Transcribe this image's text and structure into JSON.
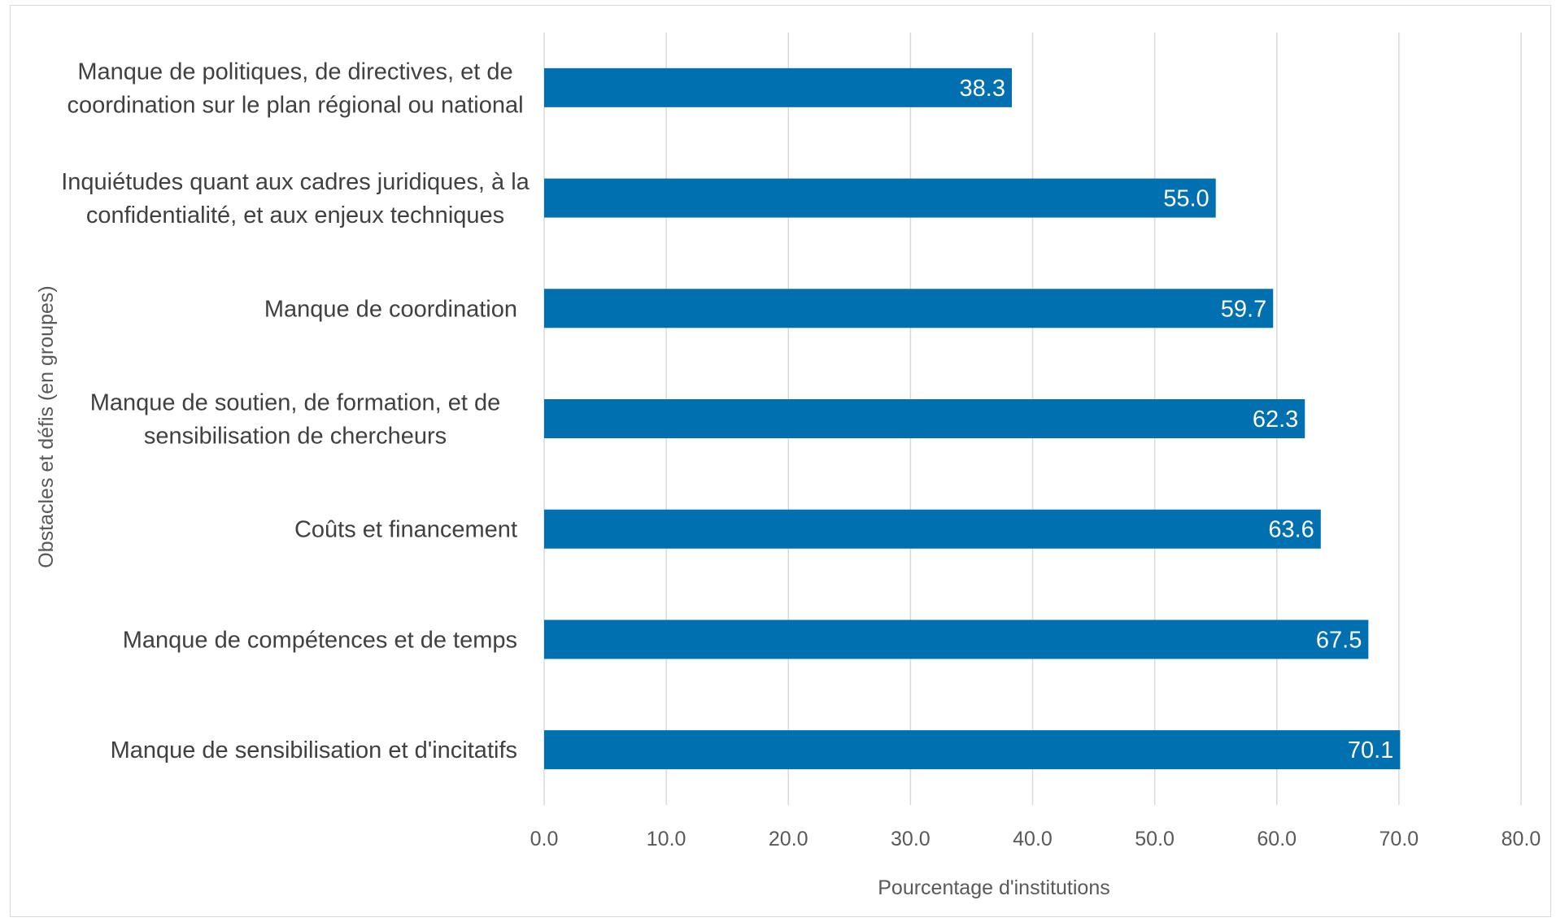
{
  "chart_data": {
    "type": "bar",
    "orientation": "horizontal",
    "categories": [
      [
        "Manque de politiques, de directives, et de",
        "coordination sur le plan régional ou national"
      ],
      [
        "Inquiétudes quant aux cadres juridiques, à la",
        "confidentialité, et aux enjeux techniques"
      ],
      [
        "Manque de coordination"
      ],
      [
        "Manque de soutien, de formation, et de",
        "sensibilisation de chercheurs"
      ],
      [
        "Coûts et financement"
      ],
      [
        "Manque de compétences et de temps"
      ],
      [
        "Manque de sensibilisation et d'incitatifs"
      ]
    ],
    "values": [
      38.3,
      55.0,
      59.7,
      62.3,
      63.6,
      67.5,
      70.1
    ],
    "data_labels": [
      "38.3",
      "55.0",
      "59.7",
      "62.3",
      "63.6",
      "67.5",
      "70.1"
    ],
    "xlabel": "Pourcentage d'institutions",
    "ylabel": "Obstacles et défis (en groupes)",
    "xlim": [
      0,
      80
    ],
    "xticks": [
      "0.0",
      "10.0",
      "20.0",
      "30.0",
      "40.0",
      "50.0",
      "60.0",
      "70.0",
      "80.0"
    ],
    "grid": "vertical",
    "legend": "none",
    "bar_color": "#0070b0",
    "grid_color": "#d9d9d9"
  }
}
